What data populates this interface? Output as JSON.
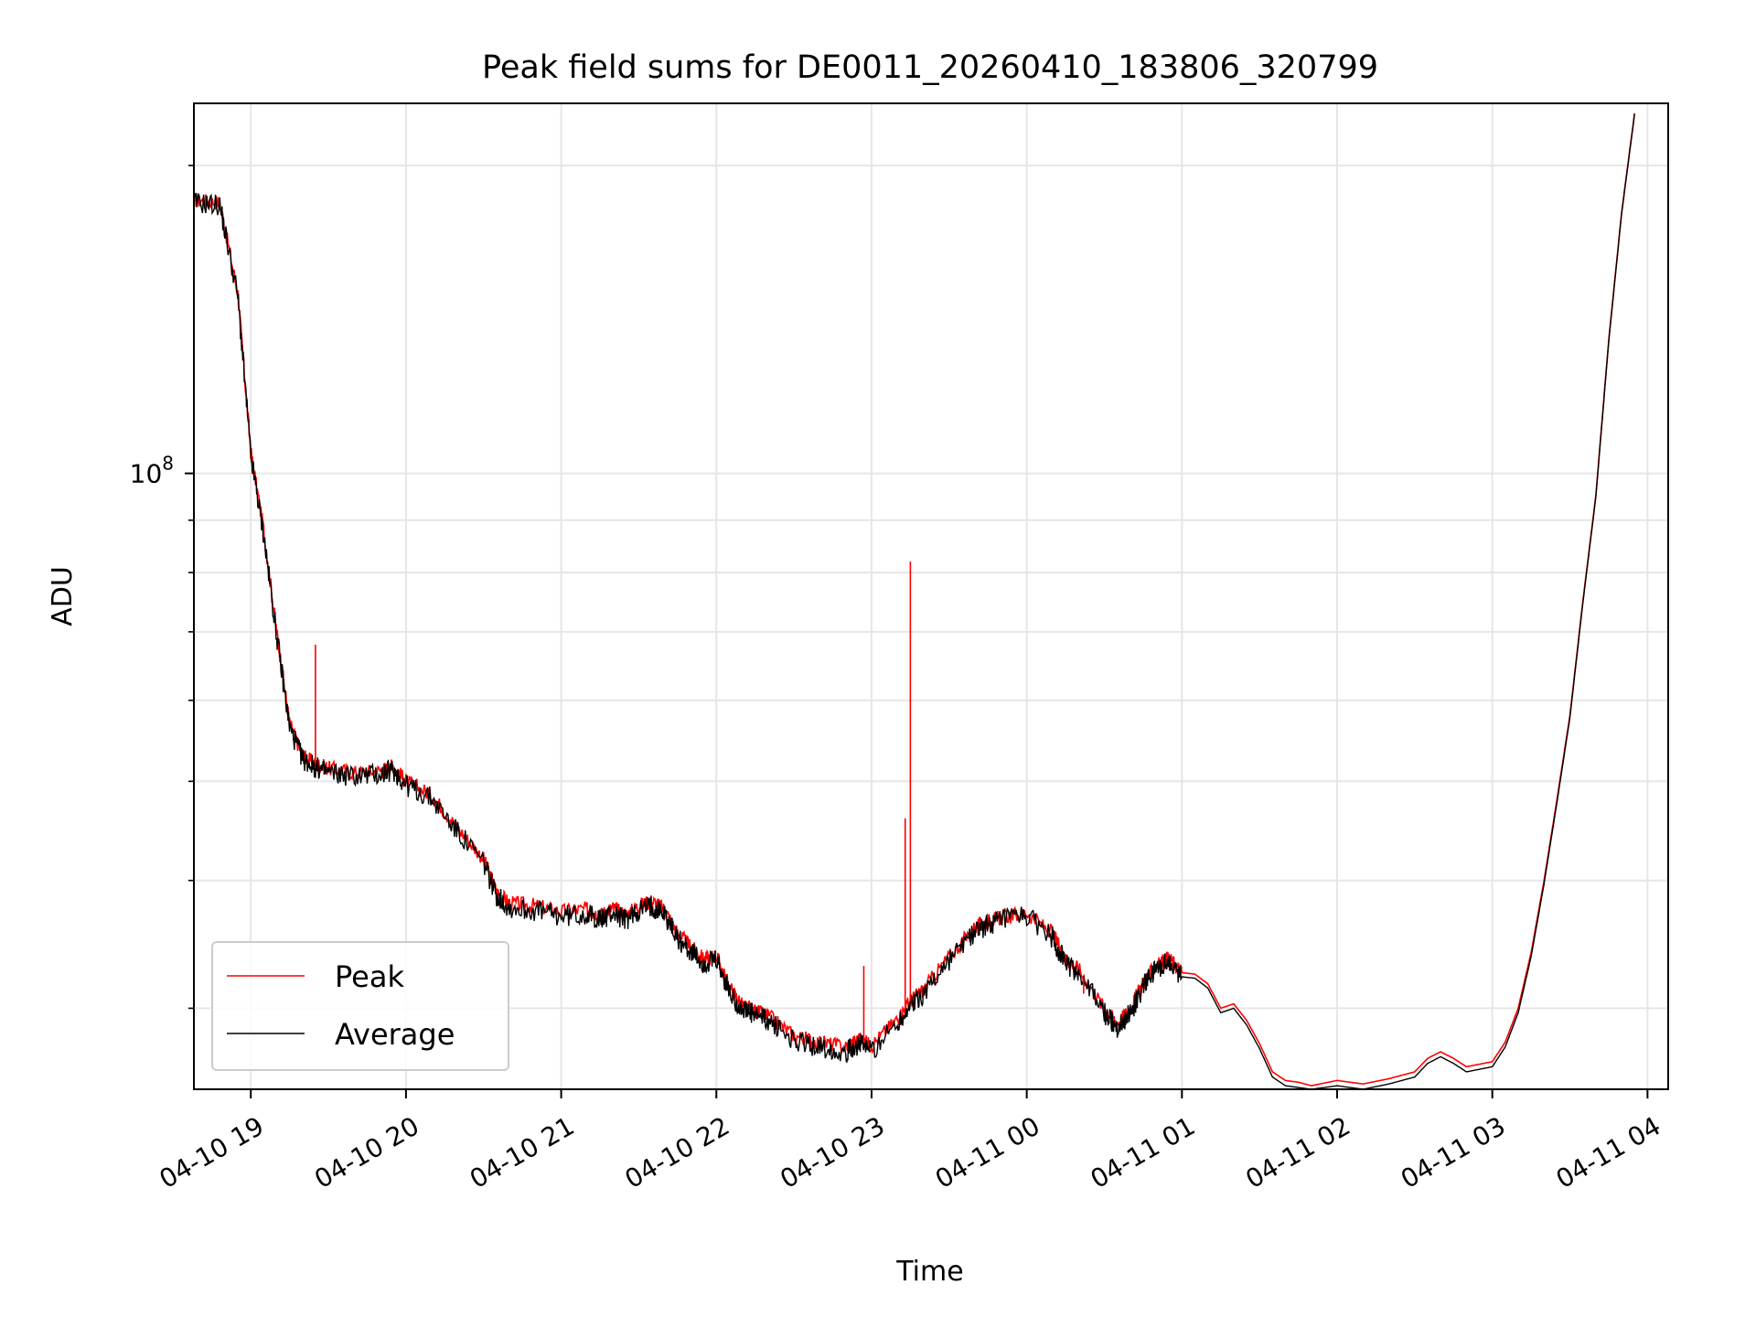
{
  "chart_data": {
    "type": "line",
    "title": "Peak field sums for DE0011_20260410_183806_320799",
    "xlabel": "Time",
    "ylabel": "ADU",
    "y_scale": "log",
    "ylim": [
      25000000,
      230000000
    ],
    "xlim": [
      "04-10 18:38",
      "04-11 04:08"
    ],
    "x_ticks": [
      "04-10 19",
      "04-10 20",
      "04-10 21",
      "04-10 22",
      "04-10 23",
      "04-11 00",
      "04-11 01",
      "04-11 02",
      "04-11 03",
      "04-11 04"
    ],
    "y_tick_major": {
      "value": 100000000,
      "base": "10",
      "exp": "8"
    },
    "grid": true,
    "legend": {
      "placement": "lower-left",
      "entries": [
        "Peak",
        "Average"
      ]
    },
    "colors": {
      "peak": "#ff0000",
      "average": "#000000",
      "grid": "#e6e6e6"
    },
    "series": [
      {
        "name": "Peak",
        "x": [
          "04-10 18:38",
          "04-10 18:48",
          "04-10 18:55",
          "04-10 19:00",
          "04-10 19:05",
          "04-10 19:10",
          "04-10 19:15",
          "04-10 19:20",
          "04-10 19:25",
          "04-10 19:30",
          "04-10 19:40",
          "04-10 19:50",
          "04-10 19:55",
          "04-10 20:00",
          "04-10 20:10",
          "04-10 20:20",
          "04-10 20:30",
          "04-10 20:35",
          "04-10 20:40",
          "04-10 20:50",
          "04-10 21:00",
          "04-10 21:10",
          "04-10 21:15",
          "04-10 21:20",
          "04-10 21:25",
          "04-10 21:30",
          "04-10 21:35",
          "04-10 21:40",
          "04-10 21:45",
          "04-10 21:50",
          "04-10 21:55",
          "04-10 22:00",
          "04-10 22:05",
          "04-10 22:10",
          "04-10 22:15",
          "04-10 22:20",
          "04-10 22:30",
          "04-10 22:40",
          "04-10 22:50",
          "04-10 22:55",
          "04-10 23:00",
          "04-10 23:10",
          "04-10 23:15",
          "04-10 23:20",
          "04-10 23:30",
          "04-10 23:40",
          "04-10 23:45",
          "04-10 23:50",
          "04-11 00:00",
          "04-11 00:10",
          "04-11 00:15",
          "04-11 00:20",
          "04-11 00:30",
          "04-11 00:35",
          "04-11 00:40",
          "04-11 00:45",
          "04-11 00:50",
          "04-11 00:55",
          "04-11 01:00",
          "04-11 01:05",
          "04-11 01:10",
          "04-11 01:15",
          "04-11 01:20",
          "04-11 01:25",
          "04-11 01:30",
          "04-11 01:35",
          "04-11 01:40",
          "04-11 01:45",
          "04-11 01:50",
          "04-11 02:00",
          "04-11 02:10",
          "04-11 02:20",
          "04-11 02:30",
          "04-11 02:35",
          "04-11 02:40",
          "04-11 02:45",
          "04-11 02:50",
          "04-11 03:00",
          "04-11 03:05",
          "04-11 03:10",
          "04-11 03:15",
          "04-11 03:20",
          "04-11 03:25",
          "04-11 03:30",
          "04-11 03:35",
          "04-11 03:40",
          "04-11 03:45",
          "04-11 03:50",
          "04-11 03:55"
        ],
        "values": [
          185000000,
          184000000,
          150000000,
          105000000,
          88000000,
          70000000,
          57000000,
          53000000,
          52000000,
          51500000,
          51000000,
          51200000,
          51800000,
          50000000,
          48500000,
          45000000,
          42000000,
          39000000,
          38000000,
          37800000,
          37300000,
          37500000,
          37000000,
          37600000,
          37000000,
          37800000,
          38200000,
          37500000,
          35500000,
          34500000,
          33500000,
          33800000,
          31500000,
          30200000,
          29800000,
          29500000,
          28200000,
          27800000,
          27500000,
          28000000,
          27600000,
          29300000,
          30500000,
          31300000,
          33700000,
          36000000,
          36500000,
          36800000,
          37200000,
          35500000,
          33500000,
          32800000,
          30000000,
          29000000,
          30000000,
          31800000,
          33000000,
          33600000,
          32500000,
          32400000,
          31700000,
          30000000,
          30300000,
          29200000,
          27700000,
          26000000,
          25500000,
          25400000,
          25200000,
          25500000,
          25300000,
          25600000,
          26000000,
          26800000,
          27200000,
          26800000,
          26300000,
          26600000,
          27800000,
          30000000,
          34000000,
          40000000,
          48000000,
          58000000,
          75000000,
          95000000,
          135000000,
          180000000,
          225000000
        ]
      },
      {
        "name": "Average",
        "x": [
          "04-10 18:38",
          "04-10 18:48",
          "04-10 18:55",
          "04-10 19:00",
          "04-10 19:05",
          "04-10 19:10",
          "04-10 19:15",
          "04-10 19:20",
          "04-10 19:25",
          "04-10 19:30",
          "04-10 19:40",
          "04-10 19:50",
          "04-10 19:55",
          "04-10 20:00",
          "04-10 20:10",
          "04-10 20:20",
          "04-10 20:30",
          "04-10 20:35",
          "04-10 20:40",
          "04-10 20:50",
          "04-10 21:00",
          "04-10 21:10",
          "04-10 21:15",
          "04-10 21:20",
          "04-10 21:25",
          "04-10 21:30",
          "04-10 21:35",
          "04-10 21:40",
          "04-10 21:45",
          "04-10 21:50",
          "04-10 21:55",
          "04-10 22:00",
          "04-10 22:05",
          "04-10 22:10",
          "04-10 22:15",
          "04-10 22:20",
          "04-10 22:30",
          "04-10 22:40",
          "04-10 22:50",
          "04-10 22:55",
          "04-10 23:00",
          "04-10 23:10",
          "04-10 23:15",
          "04-10 23:20",
          "04-10 23:30",
          "04-10 23:40",
          "04-10 23:45",
          "04-10 23:50",
          "04-11 00:00",
          "04-11 00:10",
          "04-11 00:15",
          "04-11 00:20",
          "04-11 00:30",
          "04-11 00:35",
          "04-11 00:40",
          "04-11 00:45",
          "04-11 00:50",
          "04-11 00:55",
          "04-11 01:00",
          "04-11 01:05",
          "04-11 01:10",
          "04-11 01:15",
          "04-11 01:20",
          "04-11 01:25",
          "04-11 01:30",
          "04-11 01:35",
          "04-11 01:40",
          "04-11 01:45",
          "04-11 01:50",
          "04-11 02:00",
          "04-11 02:10",
          "04-11 02:20",
          "04-11 02:30",
          "04-11 02:35",
          "04-11 02:40",
          "04-11 02:45",
          "04-11 02:50",
          "04-11 03:00",
          "04-11 03:05",
          "04-11 03:10",
          "04-11 03:15",
          "04-11 03:20",
          "04-11 03:25",
          "04-11 03:30",
          "04-11 03:35",
          "04-11 03:40",
          "04-11 03:45",
          "04-11 03:50",
          "04-11 03:55"
        ],
        "values": [
          184000000,
          183000000,
          149000000,
          104000000,
          87000000,
          69500000,
          56500000,
          52600000,
          51600000,
          51000000,
          50600000,
          50800000,
          51300000,
          49600000,
          48100000,
          44600000,
          41600000,
          38700000,
          37600000,
          37400000,
          36900000,
          37100000,
          36600000,
          37200000,
          36600000,
          37400000,
          37800000,
          37100000,
          35100000,
          34100000,
          33100000,
          33400000,
          31100000,
          29900000,
          29500000,
          29200000,
          27900000,
          27500000,
          27200000,
          27700000,
          27300000,
          29000000,
          30200000,
          31000000,
          33400000,
          35700000,
          36200000,
          36500000,
          36900000,
          35200000,
          33200000,
          32500000,
          29700000,
          28700000,
          29700000,
          31500000,
          32700000,
          33300000,
          32200000,
          32100000,
          31400000,
          29700000,
          30000000,
          28900000,
          27400000,
          25700000,
          25200000,
          25100000,
          25000000,
          25200000,
          25000000,
          25300000,
          25700000,
          26500000,
          26900000,
          26500000,
          26000000,
          26300000,
          27500000,
          29700000,
          33700000,
          39700000,
          47700000,
          57700000,
          74700000,
          94700000,
          134500000,
          179500000,
          224500000
        ]
      }
    ],
    "spikes": [
      {
        "series": "Peak",
        "x": "04-10 19:25",
        "value": 68000000
      },
      {
        "series": "Peak",
        "x": "04-10 22:57",
        "value": 33000000
      },
      {
        "series": "Peak",
        "x": "04-10 23:13",
        "value": 46000000
      },
      {
        "series": "Peak",
        "x": "04-10 23:15",
        "value": 82000000
      },
      {
        "series": "Peak",
        "x": "04-11 00:22",
        "value": 31000000
      }
    ]
  }
}
